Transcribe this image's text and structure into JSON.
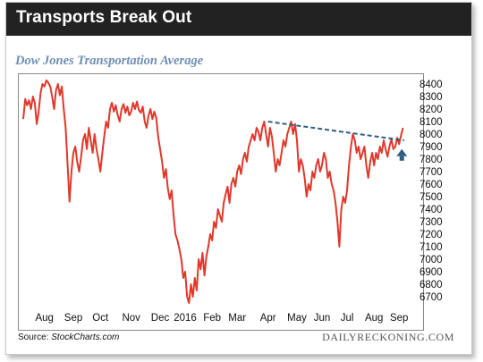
{
  "header": {
    "title": "Transports Break Out"
  },
  "footer": {
    "source_prefix": "Source: ",
    "source_site": "StockCharts.com",
    "credit": "DAILYRECKONING.COM"
  },
  "colors": {
    "line": "#e0382b",
    "trendline": "#2f5d82",
    "arrow": "#2f5d82",
    "header_bg": "#222222",
    "subtitle": "#6e8fb4"
  },
  "chart_data": {
    "type": "line",
    "title": "Dow Jones Transportation Average",
    "xlabel": "",
    "ylabel": "",
    "ylim": [
      6600,
      8450
    ],
    "yticks": [
      6700,
      6800,
      6900,
      7000,
      7100,
      7200,
      7300,
      7400,
      7500,
      7600,
      7700,
      7800,
      7900,
      8000,
      8100,
      8200,
      8300,
      8400
    ],
    "xlim": [
      0,
      100
    ],
    "xticks": [
      {
        "label": "Aug",
        "x": 5.5
      },
      {
        "label": "Sep",
        "x": 13
      },
      {
        "label": "Oct",
        "x": 20
      },
      {
        "label": "Nov",
        "x": 28
      },
      {
        "label": "Dec",
        "x": 35.5
      },
      {
        "label": "2016",
        "x": 42
      },
      {
        "label": "Feb",
        "x": 49
      },
      {
        "label": "Mar",
        "x": 55.5
      },
      {
        "label": "Apr",
        "x": 63.5
      },
      {
        "label": "May",
        "x": 71
      },
      {
        "label": "Jun",
        "x": 77.5
      },
      {
        "label": "Jul",
        "x": 84
      },
      {
        "label": "Aug",
        "x": 91
      },
      {
        "label": "Sep",
        "x": 97.5
      }
    ],
    "grid": false,
    "y_axis_position": "right",
    "series": [
      {
        "values": [
          [
            0,
            8120
          ],
          [
            0.5,
            8280
          ],
          [
            1,
            8230
          ],
          [
            1.5,
            8270
          ],
          [
            2,
            8200
          ],
          [
            2.5,
            8300
          ],
          [
            3,
            8250
          ],
          [
            3.5,
            8080
          ],
          [
            4,
            8180
          ],
          [
            4.5,
            8330
          ],
          [
            5,
            8400
          ],
          [
            5.5,
            8380
          ],
          [
            6,
            8430
          ],
          [
            6.5,
            8410
          ],
          [
            7,
            8380
          ],
          [
            7.5,
            8300
          ],
          [
            8,
            8200
          ],
          [
            8.5,
            8350
          ],
          [
            9,
            8400
          ],
          [
            9.5,
            8310
          ],
          [
            10,
            8380
          ],
          [
            10.5,
            8200
          ],
          [
            11,
            8050
          ],
          [
            11.5,
            7750
          ],
          [
            12,
            7460
          ],
          [
            12.5,
            7700
          ],
          [
            13,
            7850
          ],
          [
            13.5,
            7900
          ],
          [
            14,
            7780
          ],
          [
            14.5,
            7700
          ],
          [
            15,
            7820
          ],
          [
            15.5,
            7950
          ],
          [
            16,
            8000
          ],
          [
            16.5,
            7880
          ],
          [
            17,
            8050
          ],
          [
            17.5,
            7950
          ],
          [
            18,
            7850
          ],
          [
            18.5,
            8000
          ],
          [
            19,
            7880
          ],
          [
            19.5,
            7800
          ],
          [
            20,
            7700
          ],
          [
            20.5,
            7850
          ],
          [
            21,
            7980
          ],
          [
            21.5,
            8100
          ],
          [
            22,
            8050
          ],
          [
            22.5,
            8200
          ],
          [
            23,
            8250
          ],
          [
            23.5,
            8180
          ],
          [
            24,
            8230
          ],
          [
            24.5,
            8150
          ],
          [
            25,
            8100
          ],
          [
            25.5,
            8200
          ],
          [
            26,
            8240
          ],
          [
            26.5,
            8170
          ],
          [
            27,
            8220
          ],
          [
            27.5,
            8150
          ],
          [
            28,
            8180
          ],
          [
            28.5,
            8250
          ],
          [
            29,
            8200
          ],
          [
            29.5,
            8260
          ],
          [
            30,
            8190
          ],
          [
            30.5,
            8170
          ],
          [
            31,
            8220
          ],
          [
            31.5,
            8100
          ],
          [
            32,
            8050
          ],
          [
            32.5,
            8150
          ],
          [
            33,
            8200
          ],
          [
            33.5,
            8120
          ],
          [
            34,
            8180
          ],
          [
            34.5,
            8130
          ],
          [
            35,
            7980
          ],
          [
            35.5,
            7880
          ],
          [
            36,
            7780
          ],
          [
            36.5,
            7650
          ],
          [
            37,
            7720
          ],
          [
            37.5,
            7570
          ],
          [
            38,
            7480
          ],
          [
            38.5,
            7550
          ],
          [
            39,
            7350
          ],
          [
            39.5,
            7200
          ],
          [
            40,
            7150
          ],
          [
            40.5,
            7080
          ],
          [
            41,
            7000
          ],
          [
            41.5,
            6850
          ],
          [
            42,
            6900
          ],
          [
            42.5,
            6700
          ],
          [
            43,
            6650
          ],
          [
            43.5,
            6800
          ],
          [
            44,
            6700
          ],
          [
            44.5,
            6850
          ],
          [
            45,
            6750
          ],
          [
            45.5,
            7000
          ],
          [
            46,
            6920
          ],
          [
            46.5,
            7050
          ],
          [
            47,
            6870
          ],
          [
            47.5,
            7020
          ],
          [
            48,
            7100
          ],
          [
            48.5,
            7200
          ],
          [
            49,
            7150
          ],
          [
            49.5,
            7300
          ],
          [
            50,
            7250
          ],
          [
            50.5,
            7400
          ],
          [
            51,
            7350
          ],
          [
            51.5,
            7300
          ],
          [
            52,
            7450
          ],
          [
            52.5,
            7520
          ],
          [
            53,
            7580
          ],
          [
            53.5,
            7450
          ],
          [
            54,
            7600
          ],
          [
            54.5,
            7650
          ],
          [
            55,
            7580
          ],
          [
            55.5,
            7700
          ],
          [
            56,
            7750
          ],
          [
            56.5,
            7680
          ],
          [
            57,
            7800
          ],
          [
            57.5,
            7850
          ],
          [
            58,
            7780
          ],
          [
            58.5,
            7900
          ],
          [
            59,
            7950
          ],
          [
            59.5,
            8000
          ],
          [
            60,
            7950
          ],
          [
            60.5,
            8050
          ],
          [
            61,
            8020
          ],
          [
            61.5,
            7950
          ],
          [
            62,
            8050
          ],
          [
            62.5,
            8100
          ],
          [
            63,
            8000
          ],
          [
            63.5,
            7900
          ],
          [
            64,
            8050
          ],
          [
            64.5,
            7980
          ],
          [
            65,
            7850
          ],
          [
            65.5,
            7700
          ],
          [
            66,
            7800
          ],
          [
            66.5,
            7750
          ],
          [
            67,
            7850
          ],
          [
            67.5,
            7950
          ],
          [
            68,
            7900
          ],
          [
            68.5,
            8000
          ],
          [
            69,
            8050
          ],
          [
            69.5,
            8100
          ],
          [
            70,
            8000
          ],
          [
            70.5,
            8080
          ],
          [
            71,
            7950
          ],
          [
            71.5,
            7700
          ],
          [
            72,
            7800
          ],
          [
            72.5,
            7750
          ],
          [
            73,
            7650
          ],
          [
            73.5,
            7500
          ],
          [
            74,
            7600
          ],
          [
            74.5,
            7550
          ],
          [
            75,
            7700
          ],
          [
            75.5,
            7650
          ],
          [
            76,
            7750
          ],
          [
            76.5,
            7800
          ],
          [
            77,
            7700
          ],
          [
            77.5,
            7750
          ],
          [
            78,
            7850
          ],
          [
            78.5,
            7800
          ],
          [
            79,
            7650
          ],
          [
            79.5,
            7700
          ],
          [
            80,
            7600
          ],
          [
            80.5,
            7550
          ],
          [
            81,
            7450
          ],
          [
            81.5,
            7300
          ],
          [
            82,
            7100
          ],
          [
            82.5,
            7400
          ],
          [
            83,
            7500
          ],
          [
            83.5,
            7450
          ],
          [
            84,
            7550
          ],
          [
            84.5,
            7750
          ],
          [
            85,
            7900
          ],
          [
            85.5,
            8000
          ],
          [
            86,
            7950
          ],
          [
            86.5,
            7850
          ],
          [
            87,
            7900
          ],
          [
            87.5,
            7800
          ],
          [
            88,
            7850
          ],
          [
            88.5,
            7900
          ],
          [
            89,
            7750
          ],
          [
            89.5,
            7650
          ],
          [
            90,
            7780
          ],
          [
            90.5,
            7850
          ],
          [
            91,
            7750
          ],
          [
            91.5,
            7850
          ],
          [
            92,
            7800
          ],
          [
            92.5,
            7900
          ],
          [
            93,
            7850
          ],
          [
            93.5,
            7950
          ],
          [
            94,
            7880
          ],
          [
            94.5,
            7820
          ],
          [
            95,
            7900
          ],
          [
            95.5,
            7960
          ],
          [
            96,
            7880
          ],
          [
            96.5,
            7900
          ],
          [
            97,
            7970
          ],
          [
            97.5,
            7920
          ],
          [
            98,
            7990
          ],
          [
            98.5,
            8050
          ]
        ]
      }
    ],
    "annotations": [
      {
        "type": "dashed-trendline",
        "from": [
          63.5,
          8100
        ],
        "to": [
          98.8,
          7950
        ]
      },
      {
        "type": "arrow-up",
        "at": [
          98.2,
          7830
        ]
      }
    ]
  }
}
